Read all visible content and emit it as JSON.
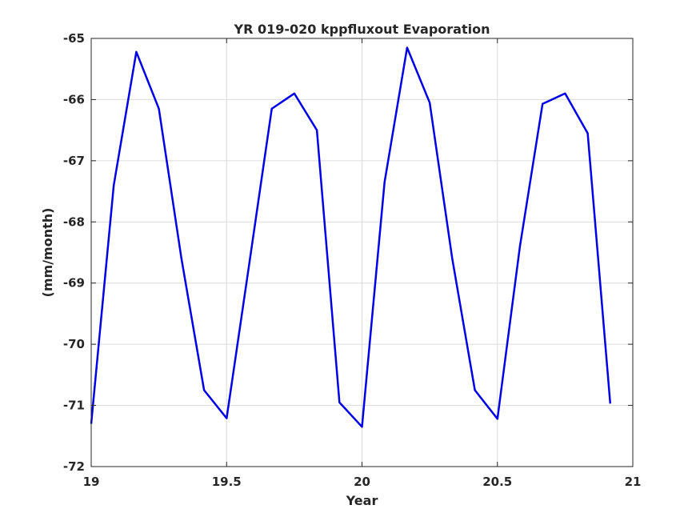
{
  "chart_data": {
    "type": "line",
    "title": "YR 019-020 kppfluxout Evaporation",
    "xlabel": "Year",
    "ylabel": "(mm/month)",
    "xlim": [
      19,
      21
    ],
    "ylim": [
      -72,
      -65
    ],
    "xticks": [
      "19",
      "19.5",
      "20",
      "20.5",
      "21"
    ],
    "yticks": [
      "-65",
      "-66",
      "-67",
      "-68",
      "-69",
      "-70",
      "-71",
      "-72"
    ],
    "grid": true,
    "series": [
      {
        "color": "#0000e6",
        "x": [
          19.0,
          19.0833,
          19.1667,
          19.25,
          19.3333,
          19.4167,
          19.5,
          19.5833,
          19.6667,
          19.75,
          19.8333,
          19.9167,
          20.0,
          20.0833,
          20.1667,
          20.25,
          20.3333,
          20.4167,
          20.5,
          20.5833,
          20.6667,
          20.75,
          20.8333,
          20.9167
        ],
        "y": [
          -71.3,
          -67.4,
          -65.22,
          -66.15,
          -68.6,
          -70.75,
          -71.21,
          -68.7,
          -66.15,
          -65.9,
          -66.5,
          -70.95,
          -71.35,
          -67.35,
          -65.15,
          -66.05,
          -68.6,
          -70.75,
          -71.22,
          -68.4,
          -66.07,
          -65.9,
          -66.55,
          -70.97
        ]
      }
    ]
  }
}
